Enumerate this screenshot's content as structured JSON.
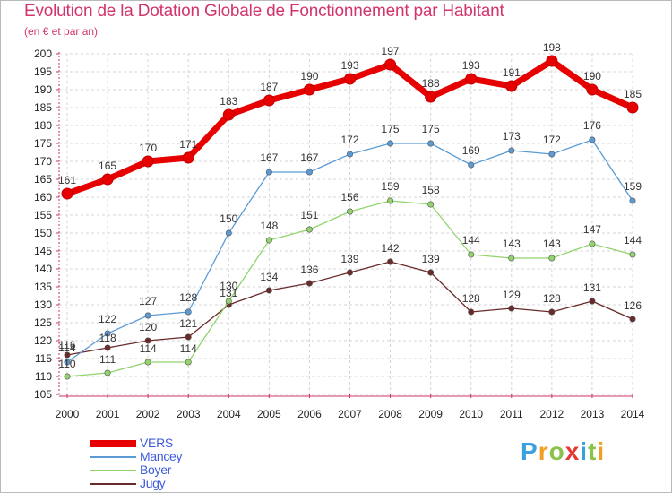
{
  "chart_data": {
    "type": "line",
    "title": "Evolution de la Dotation Globale de Fonctionnement par Habitant",
    "subtitle": "(en € et par an)",
    "x": [
      "2000",
      "2001",
      "2002",
      "2003",
      "2004",
      "2005",
      "2006",
      "2007",
      "2008",
      "2009",
      "2010",
      "2011",
      "2012",
      "2013",
      "2014"
    ],
    "ylim": [
      105,
      200
    ],
    "yticks": [
      105,
      110,
      115,
      120,
      125,
      130,
      135,
      140,
      145,
      150,
      155,
      160,
      165,
      170,
      175,
      180,
      185,
      190,
      195,
      200
    ],
    "grid": true,
    "legend_position": "bottom-left",
    "series": [
      {
        "name": "VERS",
        "color": "#e60000",
        "values": [
          161,
          165,
          170,
          171,
          183,
          187,
          190,
          193,
          197,
          188,
          193,
          191,
          198,
          190,
          185
        ]
      },
      {
        "name": "Mancey",
        "color": "#5b9bd5",
        "values": [
          114,
          122,
          127,
          128,
          150,
          167,
          167,
          172,
          175,
          175,
          169,
          173,
          172,
          176,
          159
        ]
      },
      {
        "name": "Boyer",
        "color": "#92d36e",
        "values": [
          110,
          111,
          114,
          114,
          131,
          148,
          151,
          156,
          159,
          158,
          144,
          143,
          143,
          147,
          144
        ]
      },
      {
        "name": "Jugy",
        "color": "#6b2a2a",
        "values": [
          116,
          118,
          120,
          121,
          130,
          134,
          136,
          139,
          142,
          139,
          128,
          129,
          128,
          131,
          126
        ]
      }
    ]
  },
  "logo": {
    "letters": [
      "P",
      "r",
      "o",
      "x",
      "i",
      "t",
      "i"
    ],
    "colors": [
      "#3aa0e0",
      "#f0a020",
      "#8bc34a",
      "#e53935",
      "#3aa0e0",
      "#8bc34a",
      "#f0a020"
    ]
  }
}
